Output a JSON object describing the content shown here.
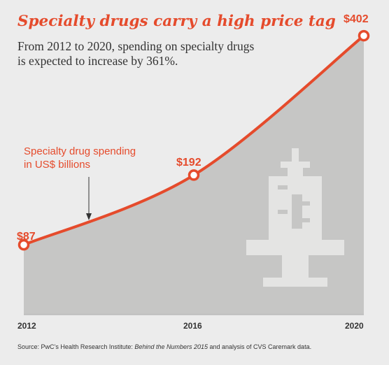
{
  "chart_data": {
    "type": "area",
    "title": "Specialty drugs carry a high price tag",
    "subtitle_line1": "From 2012 to 2020, spending on specialty drugs",
    "subtitle_line2": "is expected to increase by 361%.",
    "series": [
      {
        "name": "Specialty drug spending in US$ billions",
        "x": [
          2012,
          2016,
          2020
        ],
        "values": [
          87,
          192,
          402
        ],
        "labels": [
          "$87",
          "$192",
          "$402"
        ]
      }
    ],
    "x_ticks": [
      "2012",
      "2016",
      "2020"
    ],
    "annotation_line1": "Specialty drug spending",
    "annotation_line2": "in US$ billions",
    "icon": "syringe-icon",
    "colors": {
      "line": "#e54b2c",
      "area": "#c6c6c5",
      "icon": "#e4e4e3",
      "background": "#ececec"
    },
    "grid": false,
    "legend": "none"
  },
  "source": {
    "prefix": "Source: PwC’s Health Research Institute: ",
    "italic": "Behind the Numbers 2015",
    "suffix": " and analysis of CVS Caremark data."
  }
}
